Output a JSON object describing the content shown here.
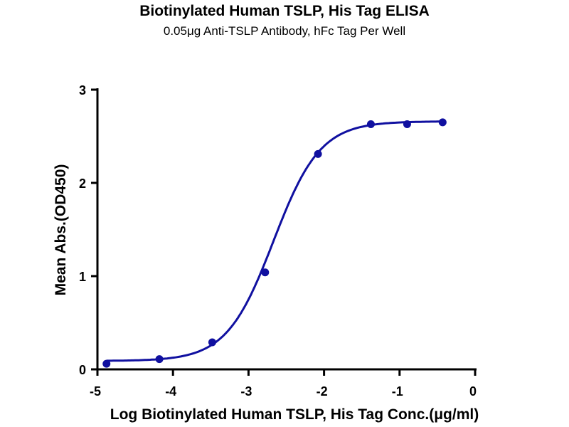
{
  "chart_data": {
    "type": "scatter",
    "title": "Biotinylated Human TSLP, His Tag ELISA",
    "subtitle": "0.05μg Anti-TSLP Antibody, hFc Tag Per Well",
    "xlabel": "Log Biotinylated Human TSLP, His Tag Conc.(μg/ml)",
    "ylabel": "Mean Abs.(OD450)",
    "xlim": [
      -5,
      0
    ],
    "ylim": [
      0,
      3
    ],
    "xticks": [
      "-5",
      "-4",
      "-3",
      "-2",
      "-1",
      "0"
    ],
    "yticks": [
      "0",
      "1",
      "2",
      "3"
    ],
    "grid": false,
    "series": [
      {
        "x": [
          -4.88,
          -4.18,
          -3.48,
          -2.78,
          -2.08,
          -1.38,
          -0.9,
          -0.43
        ],
        "y": [
          0.06,
          0.11,
          0.29,
          1.04,
          2.31,
          2.63,
          2.63,
          2.65
        ],
        "fit": "four-parameter logistic curve",
        "color": "#1010a0"
      }
    ]
  }
}
